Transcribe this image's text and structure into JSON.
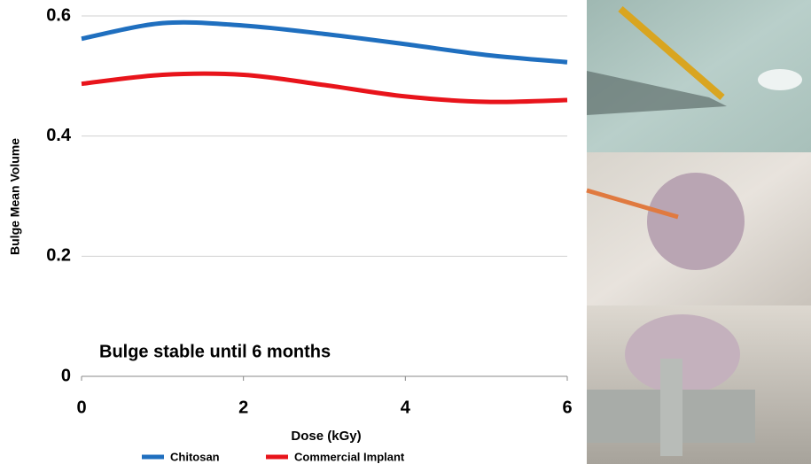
{
  "chart_data": {
    "type": "line",
    "x_label": "Dose (kGy)",
    "y_label": "Bulge Mean Volume",
    "annotation": "Bulge stable until 6 months",
    "x": [
      0,
      1,
      2,
      3,
      4,
      5,
      6
    ],
    "series": [
      {
        "name": "Chitosan",
        "color": "#1f6fbf",
        "values": [
          0.562,
          0.588,
          0.584,
          0.57,
          0.553,
          0.535,
          0.523
        ]
      },
      {
        "name": "Commercial Implant",
        "color": "#e8141b",
        "values": [
          0.487,
          0.502,
          0.502,
          0.485,
          0.466,
          0.457,
          0.46
        ]
      }
    ],
    "xlim": [
      0,
      6
    ],
    "xticks": [
      0,
      2,
      4,
      6
    ],
    "ylim": [
      0,
      0.6
    ],
    "yticks": [
      0,
      0.2,
      0.4,
      0.6
    ],
    "grid": true,
    "legend": "bottom"
  }
}
